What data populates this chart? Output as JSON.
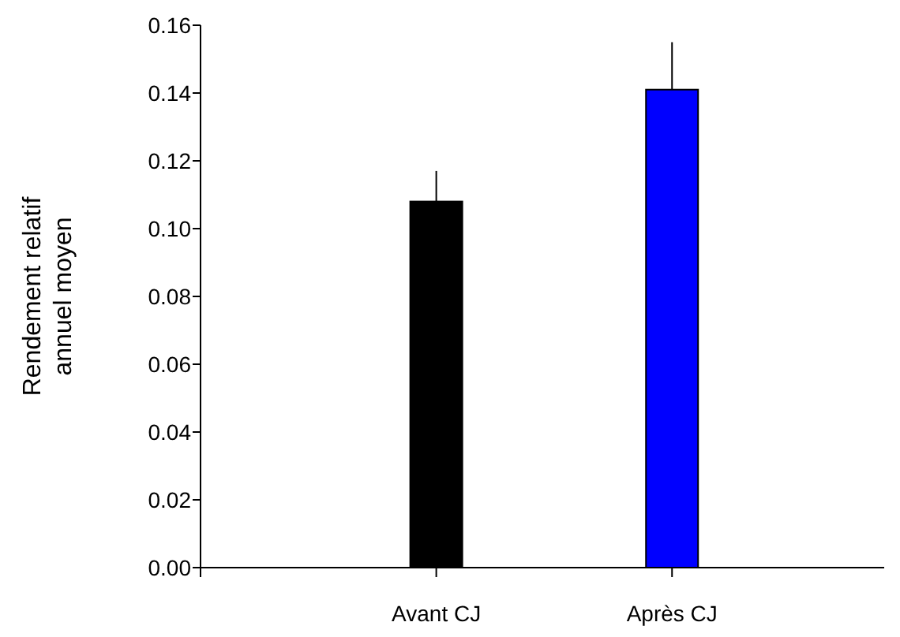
{
  "chart_data": {
    "type": "bar",
    "ylabel": "Rendement relatif annuel moyen",
    "categories": [
      "Avant CJ",
      "Après CJ"
    ],
    "values": [
      0.108,
      0.141
    ],
    "colors": [
      "#000000",
      "#0000ff"
    ],
    "errors": [
      [
        0.108,
        0.117
      ],
      [
        0.141,
        0.155
      ]
    ],
    "ylim": [
      0,
      0.16
    ],
    "yticks": [
      {
        "value": 0,
        "label": "0.00"
      },
      {
        "value": 0.02,
        "label": "0.02"
      },
      {
        "value": 0.04,
        "label": "0.04"
      },
      {
        "value": 0.06,
        "label": "0.06"
      },
      {
        "value": 0.08,
        "label": "0.08"
      },
      {
        "value": 0.1,
        "label": "0.10"
      },
      {
        "value": 0.12,
        "label": "0.12"
      },
      {
        "value": 0.14,
        "label": "0.14"
      },
      {
        "value": 0.16,
        "label": "0.16"
      }
    ],
    "grid": false
  }
}
